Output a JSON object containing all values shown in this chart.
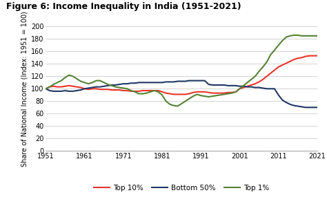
{
  "title": "Figure 6: Income Inequality in India (1951-2021)",
  "ylabel": "Share of National Income (Index: 1951 = 100)",
  "xlabel": "",
  "ylim": [
    0,
    200
  ],
  "yticks": [
    0,
    20,
    40,
    60,
    80,
    100,
    120,
    140,
    160,
    180,
    200
  ],
  "xticks": [
    1951,
    1961,
    1971,
    1981,
    1991,
    2001,
    2011,
    2021
  ],
  "background_color": "#ffffff",
  "grid_color": "#cccccc",
  "series": {
    "top10": {
      "label": "Top 10%",
      "color": "#e8352a",
      "x": [
        1951,
        1952,
        1953,
        1954,
        1955,
        1956,
        1957,
        1958,
        1959,
        1960,
        1961,
        1962,
        1963,
        1964,
        1965,
        1966,
        1967,
        1968,
        1969,
        1970,
        1971,
        1972,
        1973,
        1974,
        1975,
        1976,
        1977,
        1978,
        1979,
        1980,
        1981,
        1982,
        1983,
        1984,
        1985,
        1986,
        1987,
        1988,
        1989,
        1990,
        1991,
        1992,
        1993,
        1994,
        1995,
        1996,
        1997,
        1998,
        1999,
        2000,
        2001,
        2002,
        2003,
        2004,
        2005,
        2006,
        2007,
        2008,
        2009,
        2010,
        2011,
        2012,
        2013,
        2014,
        2015,
        2016,
        2017,
        2018,
        2019,
        2020,
        2021
      ],
      "y": [
        100,
        103,
        104,
        103,
        103,
        104,
        105,
        104,
        103,
        102,
        100,
        99,
        100,
        100,
        99,
        99,
        99,
        98,
        98,
        98,
        97,
        97,
        96,
        96,
        96,
        97,
        97,
        97,
        97,
        97,
        95,
        93,
        92,
        91,
        91,
        91,
        91,
        92,
        94,
        95,
        95,
        95,
        94,
        93,
        93,
        93,
        93,
        94,
        94,
        95,
        100,
        102,
        104,
        106,
        108,
        111,
        115,
        120,
        125,
        130,
        135,
        138,
        141,
        144,
        147,
        149,
        150,
        152,
        153,
        153,
        153
      ]
    },
    "bottom50": {
      "label": "Bottom 50%",
      "color": "#1f3864",
      "x": [
        1951,
        1952,
        1953,
        1954,
        1955,
        1956,
        1957,
        1958,
        1959,
        1960,
        1961,
        1962,
        1963,
        1964,
        1965,
        1966,
        1967,
        1968,
        1969,
        1970,
        1971,
        1972,
        1973,
        1974,
        1975,
        1976,
        1977,
        1978,
        1979,
        1980,
        1981,
        1982,
        1983,
        1984,
        1985,
        1986,
        1987,
        1988,
        1989,
        1990,
        1991,
        1992,
        1993,
        1994,
        1995,
        1996,
        1997,
        1998,
        1999,
        2000,
        2001,
        2002,
        2003,
        2004,
        2005,
        2006,
        2007,
        2008,
        2009,
        2010,
        2011,
        2012,
        2013,
        2014,
        2015,
        2016,
        2017,
        2018,
        2019,
        2020,
        2021
      ],
      "y": [
        100,
        97,
        96,
        96,
        96,
        97,
        96,
        96,
        97,
        98,
        100,
        101,
        102,
        103,
        103,
        104,
        105,
        106,
        106,
        107,
        108,
        108,
        109,
        109,
        110,
        110,
        110,
        110,
        110,
        110,
        110,
        111,
        111,
        111,
        112,
        112,
        112,
        113,
        113,
        113,
        113,
        113,
        107,
        106,
        106,
        106,
        106,
        105,
        105,
        105,
        104,
        104,
        103,
        103,
        102,
        102,
        101,
        100,
        100,
        100,
        90,
        82,
        78,
        75,
        73,
        72,
        71,
        70,
        70,
        70,
        70
      ]
    },
    "top1": {
      "label": "Top 1%",
      "color": "#548235",
      "x": [
        1951,
        1952,
        1953,
        1954,
        1955,
        1956,
        1957,
        1958,
        1959,
        1960,
        1961,
        1962,
        1963,
        1964,
        1965,
        1966,
        1967,
        1968,
        1969,
        1970,
        1971,
        1972,
        1973,
        1974,
        1975,
        1976,
        1977,
        1978,
        1979,
        1980,
        1981,
        1982,
        1983,
        1984,
        1985,
        1986,
        1987,
        1988,
        1989,
        1990,
        1991,
        1992,
        1993,
        1994,
        1995,
        1996,
        1997,
        1998,
        1999,
        2000,
        2001,
        2002,
        2003,
        2004,
        2005,
        2006,
        2007,
        2008,
        2009,
        2010,
        2011,
        2012,
        2013,
        2014,
        2015,
        2016,
        2017,
        2018,
        2019,
        2020,
        2021
      ],
      "y": [
        100,
        103,
        107,
        110,
        113,
        118,
        122,
        120,
        116,
        112,
        110,
        108,
        110,
        113,
        113,
        110,
        107,
        105,
        103,
        102,
        101,
        100,
        97,
        95,
        92,
        92,
        93,
        95,
        97,
        95,
        90,
        80,
        75,
        73,
        72,
        76,
        80,
        84,
        88,
        91,
        89,
        88,
        87,
        88,
        89,
        90,
        91,
        92,
        93,
        95,
        100,
        105,
        110,
        115,
        120,
        128,
        135,
        143,
        155,
        162,
        170,
        177,
        183,
        185,
        186,
        186,
        185,
        185,
        185,
        185,
        185
      ]
    }
  },
  "title_fontsize": 9,
  "tick_fontsize": 7,
  "ylabel_fontsize": 7,
  "legend_fontsize": 7.5,
  "linewidth": 1.5
}
